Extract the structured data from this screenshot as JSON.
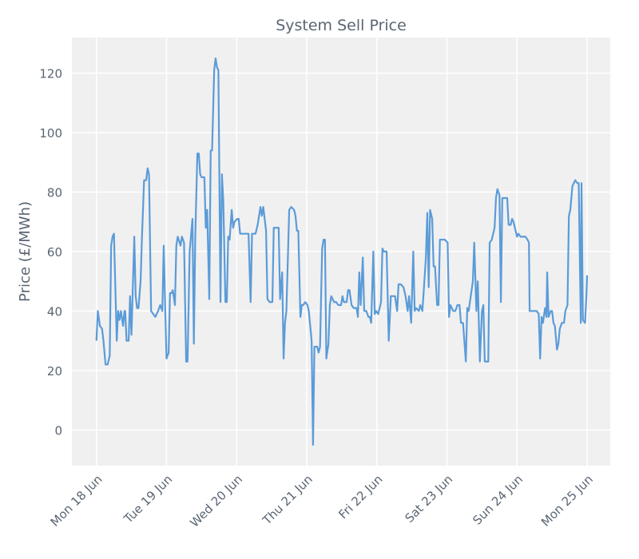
{
  "chart_data": {
    "type": "line",
    "title": "System Sell Price",
    "y_label": "Price (£/MWh)",
    "color": "#5b9bd8",
    "grid": true,
    "xlim": [
      -0.35,
      7.33
    ],
    "ylim": [
      -12,
      132
    ],
    "xticks": [
      {
        "value": 0,
        "label": "Mon 18 Jun"
      },
      {
        "value": 1,
        "label": "Tue 19 Jun"
      },
      {
        "value": 2,
        "label": "Wed 20 Jun"
      },
      {
        "value": 3,
        "label": "Thu 21 Jun"
      },
      {
        "value": 4,
        "label": "Fri 22 Jun"
      },
      {
        "value": 5,
        "label": "Sat 23 Jun"
      },
      {
        "value": 6,
        "label": "Sun 24 Jun"
      },
      {
        "value": 7,
        "label": "Mon 25 Jun"
      }
    ],
    "yticks": [
      0,
      20,
      40,
      60,
      80,
      100,
      120
    ],
    "x": [
      0,
      0.02,
      0.05,
      0.08,
      0.1,
      0.13,
      0.16,
      0.19,
      0.21,
      0.23,
      0.25,
      0.29,
      0.31,
      0.33,
      0.35,
      0.38,
      0.4,
      0.41,
      0.43,
      0.46,
      0.48,
      0.5,
      0.54,
      0.56,
      0.58,
      0.6,
      0.63,
      0.65,
      0.68,
      0.71,
      0.73,
      0.75,
      0.78,
      0.81,
      0.84,
      0.88,
      0.91,
      0.94,
      0.96,
      0.98,
      1.0,
      1.03,
      1.05,
      1.07,
      1.09,
      1.12,
      1.14,
      1.16,
      1.2,
      1.22,
      1.25,
      1.28,
      1.3,
      1.33,
      1.37,
      1.39,
      1.41,
      1.44,
      1.46,
      1.48,
      1.5,
      1.54,
      1.56,
      1.58,
      1.61,
      1.63,
      1.65,
      1.68,
      1.7,
      1.72,
      1.74,
      1.77,
      1.79,
      1.81,
      1.84,
      1.86,
      1.88,
      1.9,
      1.93,
      1.95,
      1.97,
      2.01,
      2.03,
      2.05,
      2.11,
      2.17,
      2.2,
      2.22,
      2.27,
      2.3,
      2.34,
      2.36,
      2.38,
      2.42,
      2.44,
      2.47,
      2.51,
      2.53,
      2.58,
      2.6,
      2.62,
      2.65,
      2.67,
      2.69,
      2.71,
      2.75,
      2.78,
      2.82,
      2.84,
      2.86,
      2.88,
      2.91,
      2.93,
      2.95,
      2.98,
      3.01,
      3.03,
      3.07,
      3.09,
      3.11,
      3.15,
      3.17,
      3.19,
      3.22,
      3.24,
      3.26,
      3.28,
      3.31,
      3.33,
      3.35,
      3.39,
      3.42,
      3.45,
      3.49,
      3.51,
      3.53,
      3.57,
      3.59,
      3.61,
      3.64,
      3.67,
      3.71,
      3.73,
      3.75,
      3.77,
      3.8,
      3.82,
      3.85,
      3.88,
      3.9,
      3.92,
      3.95,
      3.97,
      3.99,
      4.02,
      4.06,
      4.08,
      4.1,
      4.14,
      4.17,
      4.2,
      4.23,
      4.26,
      4.29,
      4.31,
      4.34,
      4.38,
      4.41,
      4.44,
      4.46,
      4.49,
      4.52,
      4.54,
      4.56,
      4.6,
      4.62,
      4.65,
      4.67,
      4.7,
      4.72,
      4.74,
      4.76,
      4.79,
      4.81,
      4.83,
      4.86,
      4.88,
      4.9,
      4.94,
      4.97,
      5.01,
      5.03,
      5.05,
      5.09,
      5.12,
      5.15,
      5.18,
      5.2,
      5.23,
      5.27,
      5.29,
      5.31,
      5.34,
      5.37,
      5.39,
      5.42,
      5.44,
      5.47,
      5.5,
      5.52,
      5.54,
      5.59,
      5.61,
      5.64,
      5.68,
      5.7,
      5.72,
      5.75,
      5.77,
      5.79,
      5.83,
      5.86,
      5.88,
      5.91,
      5.93,
      5.95,
      5.97,
      6.0,
      6.02,
      6.05,
      6.09,
      6.12,
      6.15,
      6.17,
      6.18,
      6.21,
      6.25,
      6.28,
      6.31,
      6.33,
      6.35,
      6.37,
      6.4,
      6.42,
      6.43,
      6.45,
      6.48,
      6.5,
      6.52,
      6.54,
      6.57,
      6.59,
      6.61,
      6.64,
      6.67,
      6.69,
      6.72,
      6.74,
      6.76,
      6.79,
      6.81,
      6.83,
      6.86,
      6.88,
      6.91,
      6.92,
      6.94,
      6.97,
      6.99,
      7.0
    ],
    "values": [
      30,
      40,
      35,
      34,
      30,
      22,
      22,
      25,
      62,
      65,
      66,
      30,
      40,
      37,
      40,
      35,
      40,
      40,
      30,
      30,
      45,
      32,
      65,
      45,
      41,
      41,
      50,
      65,
      84,
      84,
      88,
      86,
      40,
      39,
      38,
      40,
      42,
      40,
      62,
      42,
      24,
      26,
      46,
      46,
      47,
      42,
      62,
      65,
      62,
      65,
      63,
      23,
      23,
      60,
      71,
      29,
      65,
      93,
      93,
      86,
      85,
      85,
      68,
      74,
      44,
      94,
      94,
      121,
      125,
      122,
      121,
      43,
      86,
      77,
      43,
      43,
      65,
      64,
      74,
      68,
      70,
      71,
      71,
      66,
      66,
      66,
      43,
      66,
      66,
      69,
      75,
      72,
      75,
      67,
      44,
      43,
      43,
      68,
      68,
      68,
      44,
      53,
      24,
      36,
      40,
      74,
      75,
      74,
      72,
      67,
      67,
      38,
      42,
      42,
      43,
      42,
      40,
      30,
      -5,
      28,
      28,
      26,
      28,
      61,
      64,
      64,
      24,
      29,
      42,
      45,
      43,
      43,
      42,
      42,
      45,
      43,
      43,
      47,
      47,
      42,
      41,
      41,
      38,
      53,
      42,
      58,
      40,
      40,
      38,
      38,
      36,
      60,
      39,
      40,
      39,
      43,
      61,
      60,
      60,
      30,
      45,
      45,
      45,
      40,
      49,
      49,
      48,
      45,
      40,
      45,
      36,
      60,
      40,
      41,
      40,
      42,
      40,
      47,
      58,
      73,
      48,
      74,
      71,
      55,
      55,
      42,
      42,
      64,
      64,
      64,
      63,
      38,
      42,
      40,
      40,
      42,
      42,
      36,
      36,
      23,
      41,
      40,
      45,
      50,
      63,
      40,
      50,
      23,
      40,
      42,
      23,
      23,
      63,
      64,
      68,
      78,
      81,
      79,
      43,
      78,
      78,
      78,
      69,
      69,
      71,
      70,
      68,
      65,
      66,
      65,
      65,
      65,
      64,
      63,
      40,
      40,
      40,
      40,
      39,
      24,
      38,
      36,
      41,
      38,
      53,
      38,
      40,
      40,
      36,
      35,
      27,
      29,
      34,
      36,
      36,
      40,
      42,
      72,
      74,
      82,
      83,
      84,
      83,
      83,
      36,
      83,
      37,
      36,
      45,
      52
    ]
  }
}
